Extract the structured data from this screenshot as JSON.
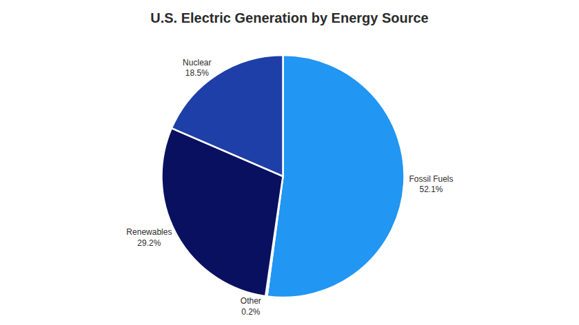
{
  "chart_data": {
    "type": "pie",
    "title": "U.S. Electric Generation by Energy Source",
    "categories": [
      "Fossil Fuels",
      "Other",
      "Renewables",
      "Nuclear"
    ],
    "values": [
      52.1,
      0.2,
      29.2,
      18.5
    ],
    "value_labels": [
      "52.1%",
      "0.2%",
      "29.2%",
      "18.5%"
    ],
    "colors": [
      "#2196F3",
      "#90CAF9",
      "#0A1060",
      "#1E3FA8"
    ],
    "data_labels": true
  }
}
